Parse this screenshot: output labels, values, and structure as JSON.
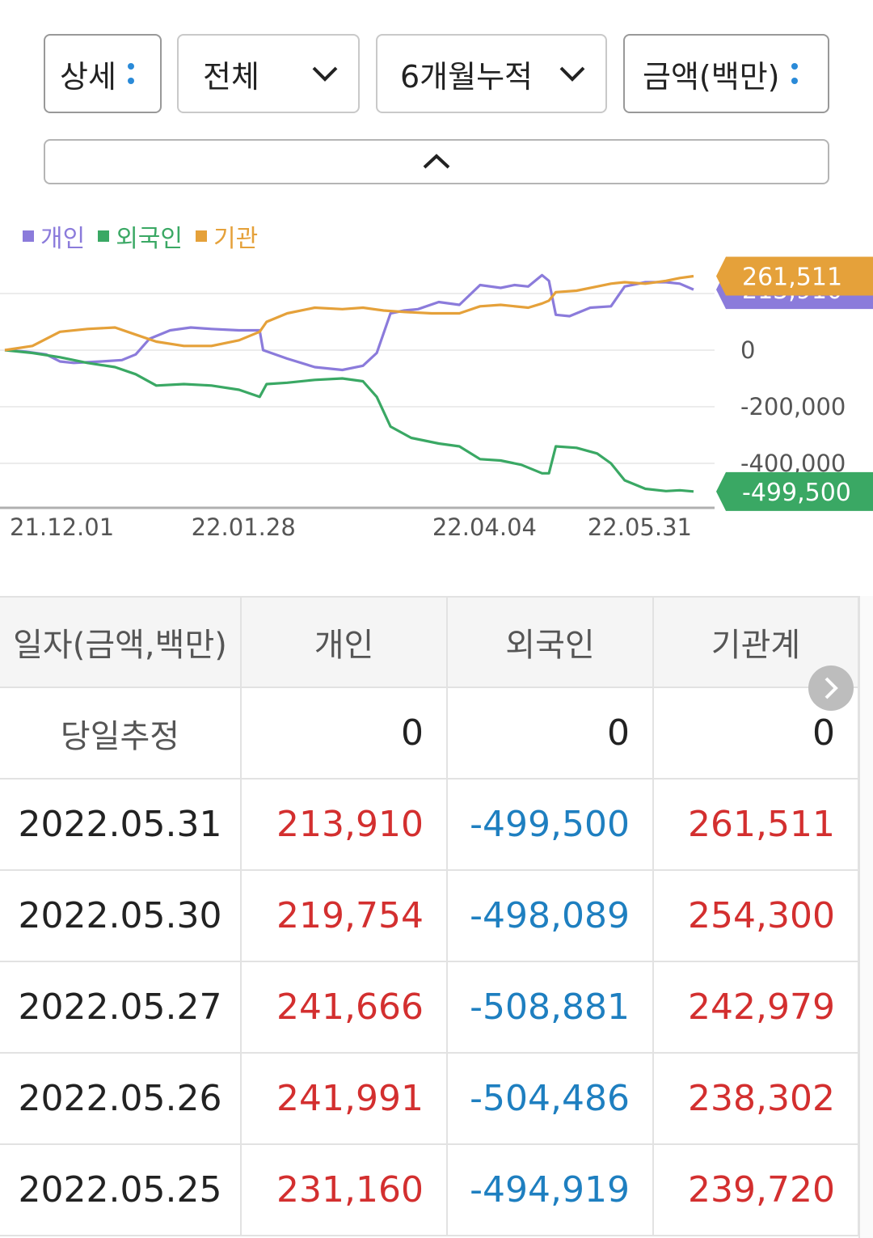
{
  "filters": [
    {
      "label": "상세",
      "control": "dots"
    },
    {
      "label": "전체",
      "control": "chevron"
    },
    {
      "label": "6개월누적",
      "control": "chevron"
    },
    {
      "label": "금액(백만)",
      "control": "dots"
    }
  ],
  "chart_data": {
    "type": "line",
    "legend": [
      {
        "name": "개인",
        "color": "#8b7bdb"
      },
      {
        "name": "외국인",
        "color": "#3aa864"
      },
      {
        "name": "기관",
        "color": "#e5a13a"
      }
    ],
    "y_ticks": [
      "0",
      "-200,000",
      "-400,000"
    ],
    "y_tick_values": [
      0,
      -200000,
      -400000
    ],
    "ylim": [
      -570000,
      300000
    ],
    "x_ticks": [
      {
        "label": "21.12.01",
        "x": 0.04
      },
      {
        "label": "22.01.28",
        "x": 0.37
      },
      {
        "label": "22.04.04",
        "x": 0.72
      },
      {
        "label": "22.05.31",
        "x": 1.0
      }
    ],
    "end_labels": [
      {
        "text": "261,511",
        "color": "#e5a13a",
        "value": 261511
      },
      {
        "text": "213,910",
        "color": "#8b7bdb",
        "value": 213910
      },
      {
        "text": "-499,500",
        "color": "#3aa864",
        "value": -499500
      }
    ],
    "series": [
      {
        "name": "개인",
        "color": "#8b7bdb",
        "points": [
          [
            0,
            0
          ],
          [
            0.03,
            -5000
          ],
          [
            0.06,
            -15000
          ],
          [
            0.08,
            -40000
          ],
          [
            0.1,
            -45000
          ],
          [
            0.14,
            -40000
          ],
          [
            0.17,
            -35000
          ],
          [
            0.19,
            -15000
          ],
          [
            0.21,
            40000
          ],
          [
            0.24,
            70000
          ],
          [
            0.27,
            80000
          ],
          [
            0.3,
            75000
          ],
          [
            0.34,
            70000
          ],
          [
            0.37,
            70000
          ],
          [
            0.375,
            0
          ],
          [
            0.41,
            -30000
          ],
          [
            0.45,
            -60000
          ],
          [
            0.49,
            -70000
          ],
          [
            0.52,
            -55000
          ],
          [
            0.54,
            -10000
          ],
          [
            0.56,
            130000
          ],
          [
            0.58,
            140000
          ],
          [
            0.6,
            145000
          ],
          [
            0.63,
            170000
          ],
          [
            0.66,
            160000
          ],
          [
            0.69,
            230000
          ],
          [
            0.72,
            220000
          ],
          [
            0.74,
            230000
          ],
          [
            0.76,
            225000
          ],
          [
            0.78,
            265000
          ],
          [
            0.79,
            245000
          ],
          [
            0.8,
            125000
          ],
          [
            0.82,
            120000
          ],
          [
            0.85,
            150000
          ],
          [
            0.88,
            155000
          ],
          [
            0.9,
            225000
          ],
          [
            0.93,
            240000
          ],
          [
            0.96,
            240000
          ],
          [
            0.98,
            235000
          ],
          [
            1.0,
            213910
          ]
        ]
      },
      {
        "name": "외국인",
        "color": "#3aa864",
        "points": [
          [
            0,
            0
          ],
          [
            0.04,
            -10000
          ],
          [
            0.08,
            -25000
          ],
          [
            0.12,
            -45000
          ],
          [
            0.16,
            -60000
          ],
          [
            0.19,
            -85000
          ],
          [
            0.22,
            -125000
          ],
          [
            0.26,
            -120000
          ],
          [
            0.3,
            -125000
          ],
          [
            0.34,
            -140000
          ],
          [
            0.37,
            -165000
          ],
          [
            0.38,
            -120000
          ],
          [
            0.41,
            -115000
          ],
          [
            0.45,
            -105000
          ],
          [
            0.49,
            -100000
          ],
          [
            0.52,
            -110000
          ],
          [
            0.54,
            -165000
          ],
          [
            0.56,
            -270000
          ],
          [
            0.59,
            -310000
          ],
          [
            0.63,
            -330000
          ],
          [
            0.66,
            -340000
          ],
          [
            0.69,
            -385000
          ],
          [
            0.72,
            -390000
          ],
          [
            0.75,
            -405000
          ],
          [
            0.78,
            -435000
          ],
          [
            0.79,
            -435000
          ],
          [
            0.8,
            -340000
          ],
          [
            0.83,
            -345000
          ],
          [
            0.86,
            -365000
          ],
          [
            0.88,
            -400000
          ],
          [
            0.9,
            -460000
          ],
          [
            0.93,
            -490000
          ],
          [
            0.96,
            -498000
          ],
          [
            0.98,
            -495000
          ],
          [
            1.0,
            -499500
          ]
        ]
      },
      {
        "name": "기관",
        "color": "#e5a13a",
        "points": [
          [
            0,
            0
          ],
          [
            0.04,
            15000
          ],
          [
            0.08,
            65000
          ],
          [
            0.12,
            75000
          ],
          [
            0.16,
            80000
          ],
          [
            0.19,
            55000
          ],
          [
            0.22,
            30000
          ],
          [
            0.26,
            15000
          ],
          [
            0.3,
            15000
          ],
          [
            0.34,
            35000
          ],
          [
            0.37,
            65000
          ],
          [
            0.38,
            100000
          ],
          [
            0.41,
            130000
          ],
          [
            0.45,
            150000
          ],
          [
            0.49,
            145000
          ],
          [
            0.52,
            150000
          ],
          [
            0.55,
            140000
          ],
          [
            0.58,
            135000
          ],
          [
            0.62,
            130000
          ],
          [
            0.66,
            130000
          ],
          [
            0.69,
            155000
          ],
          [
            0.72,
            160000
          ],
          [
            0.76,
            150000
          ],
          [
            0.78,
            165000
          ],
          [
            0.79,
            175000
          ],
          [
            0.8,
            205000
          ],
          [
            0.83,
            210000
          ],
          [
            0.86,
            225000
          ],
          [
            0.88,
            235000
          ],
          [
            0.9,
            240000
          ],
          [
            0.93,
            235000
          ],
          [
            0.96,
            245000
          ],
          [
            0.98,
            255000
          ],
          [
            1.0,
            261511
          ]
        ]
      }
    ]
  },
  "table": {
    "headers": [
      "일자(금액,백만)",
      "개인",
      "외국인",
      "기관계"
    ],
    "rows": [
      {
        "date": "당일추정",
        "individual": "0",
        "foreign": "0",
        "institution": "0"
      },
      {
        "date": "2022.05.31",
        "individual": "213,910",
        "foreign": "-499,500",
        "institution": "261,511"
      },
      {
        "date": "2022.05.30",
        "individual": "219,754",
        "foreign": "-498,089",
        "institution": "254,300"
      },
      {
        "date": "2022.05.27",
        "individual": "241,666",
        "foreign": "-508,881",
        "institution": "242,979"
      },
      {
        "date": "2022.05.26",
        "individual": "241,991",
        "foreign": "-504,486",
        "institution": "238,302"
      },
      {
        "date": "2022.05.25",
        "individual": "231,160",
        "foreign": "-494,919",
        "institution": "239,720"
      }
    ]
  },
  "colors": {
    "positive": "#d32f2f",
    "negative": "#1e7fc0",
    "accent": "#2a8ad8"
  }
}
